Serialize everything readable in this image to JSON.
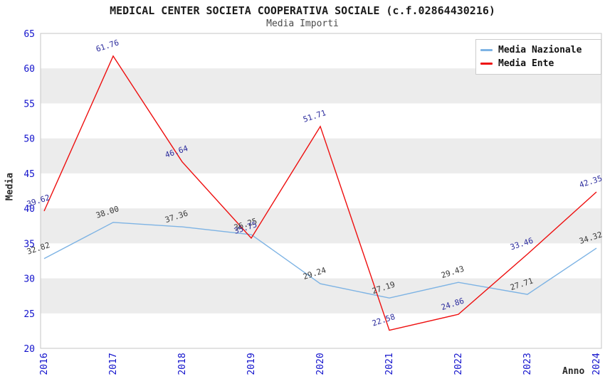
{
  "header": {
    "title": "MEDICAL CENTER SOCIETA COOPERATIVA SOCIALE (c.f.02864430216)",
    "subtitle": "Media Importi"
  },
  "chart_data": {
    "type": "line",
    "title": "MEDICAL CENTER SOCIETA COOPERATIVA SOCIALE (c.f.02864430216)",
    "subtitle": "Media Importi",
    "xlabel": "Anno",
    "ylabel": "Media",
    "categories": [
      2016,
      2017,
      2018,
      2019,
      2020,
      2021,
      2022,
      2023,
      2024
    ],
    "ylim": [
      20,
      65
    ],
    "ytick_step": 5,
    "grid": "alternating-horizontal-bands",
    "legend_position": "top-right",
    "series": [
      {
        "name": "Media Nazionale",
        "color": "#7db3e4",
        "label_color": "#3a3a3a",
        "values": [
          32.82,
          38.0,
          37.36,
          36.25,
          29.24,
          27.19,
          29.43,
          27.71,
          34.32
        ]
      },
      {
        "name": "Media Ente",
        "color": "#ee0e0e",
        "label_color": "#2e2e9e",
        "values": [
          39.62,
          61.76,
          46.64,
          35.75,
          51.71,
          22.58,
          24.86,
          33.46,
          42.35
        ]
      }
    ],
    "colors": {
      "axis_tick_text": "#1212cc",
      "band_fill": "#ececec",
      "plot_background": "#ffffff",
      "plot_border": "#c6c6c6"
    }
  }
}
